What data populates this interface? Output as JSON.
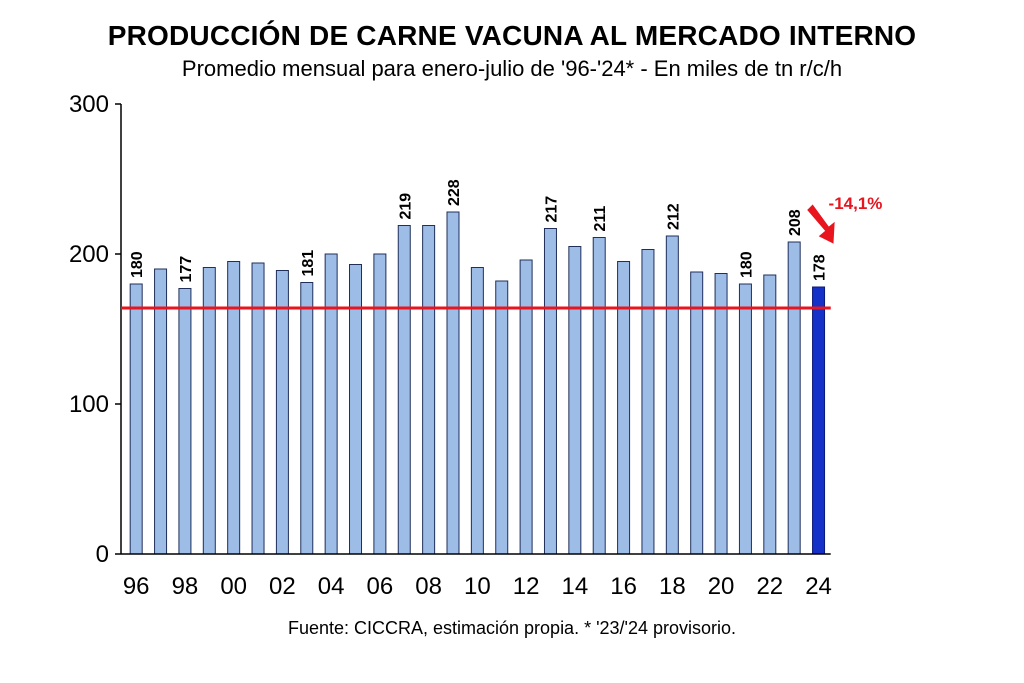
{
  "title": "PRODUCCIÓN DE CARNE VACUNA AL MERCADO INTERNO",
  "subtitle": "Promedio mensual para enero-julio de '96-'24* - En miles de tn r/c/h",
  "source": "Fuente: CICCRA, estimación propia. * '23/'24 provisorio.",
  "colors": {
    "bar": "#9DBCE6",
    "bar_highlight": "#1531C8",
    "reference_line": "#E8141E",
    "annotation": "#E8141E"
  },
  "chart_data": {
    "type": "bar",
    "title": "PRODUCCIÓN DE CARNE VACUNA AL MERCADO INTERNO",
    "xlabel": "",
    "ylabel": "",
    "ylim": [
      0,
      300
    ],
    "yticks": [
      0,
      100,
      200,
      300
    ],
    "categories": [
      "1996",
      "1997",
      "1998",
      "1999",
      "2000",
      "2001",
      "2002",
      "2003",
      "2004",
      "2005",
      "2006",
      "2007",
      "2008",
      "2009",
      "2010",
      "2011",
      "2012",
      "2013",
      "2014",
      "2015",
      "2016",
      "2017",
      "2018",
      "2019",
      "2020",
      "2021",
      "2022",
      "2023",
      "2024"
    ],
    "values": [
      180,
      190,
      177,
      191,
      195,
      194,
      189,
      181,
      200,
      193,
      200,
      219,
      219,
      228,
      191,
      182,
      196,
      217,
      205,
      211,
      195,
      203,
      212,
      188,
      187,
      180,
      186,
      208,
      178
    ],
    "x_tick_labels": [
      "96",
      "98",
      "00",
      "02",
      "04",
      "06",
      "08",
      "10",
      "12",
      "14",
      "16",
      "18",
      "20",
      "22",
      "24"
    ],
    "data_labels": {
      "1996": "180",
      "1998": "177",
      "2003": "181",
      "2007": "219",
      "2009": "228",
      "2013": "217",
      "2015": "211",
      "2018": "212",
      "2021": "180",
      "2023": "208",
      "2024": "178"
    },
    "highlight_category": "2024",
    "reference_line_value": 164,
    "annotation": "-14,1%",
    "grid": false,
    "legend": "none"
  }
}
